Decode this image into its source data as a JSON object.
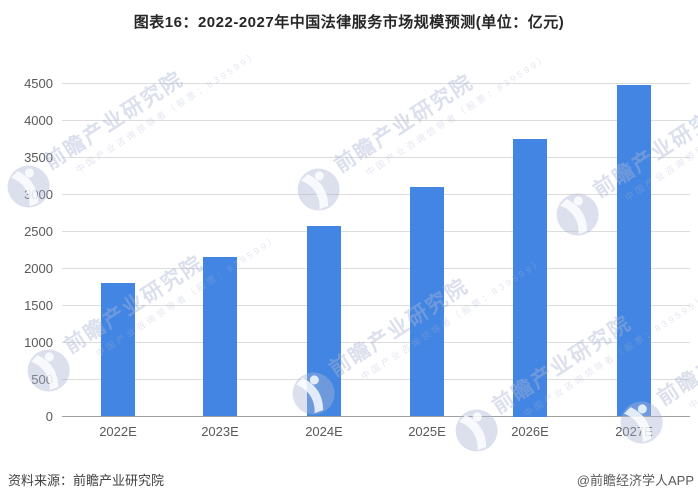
{
  "footer": {
    "source": "资料来源：前瞻产业研究院",
    "credit": "@前瞻经济学人APP"
  },
  "watermark": {
    "text": "前瞻产业研究院",
    "subtext": "中国产业咨询领导者（股票：839599）"
  },
  "colors": {
    "bar": "#4285E2",
    "grid": "#DCDCDC",
    "axis": "#A0A0A0",
    "tick_label": "#595959",
    "title": "#262626",
    "watermark": "#E2E6F0"
  },
  "chart_data": {
    "type": "bar",
    "title": "图表16：2022-2027年中国法律服务市场规模预测(单位：亿元)",
    "categories": [
      "2022E",
      "2023E",
      "2024E",
      "2025E",
      "2026E",
      "2027E"
    ],
    "values": [
      1800,
      2150,
      2580,
      3100,
      3750,
      4480
    ],
    "xlabel": "",
    "ylabel": "",
    "unit": "亿元",
    "ylim": [
      0,
      4500
    ],
    "ytick_interval": 500,
    "grid": true,
    "legend": false,
    "bar_color": "#4285E2"
  }
}
